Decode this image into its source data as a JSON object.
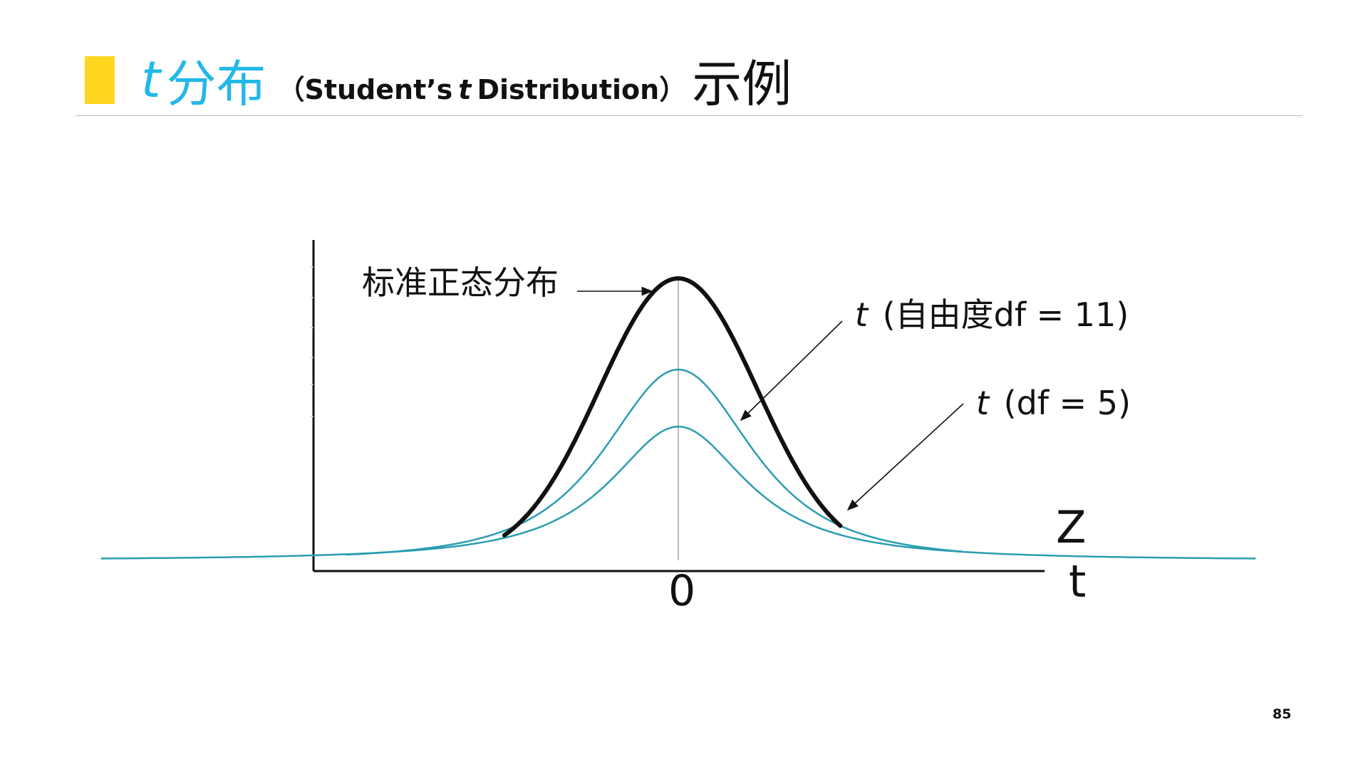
{
  "title": {
    "italic_t": "t",
    "main": "分布",
    "sub_open": "（Student’s",
    "sub_italic": "t",
    "sub_close": "Distribution）",
    "tail": "示例"
  },
  "diagram": {
    "labels": {
      "normal": "标准正态分布",
      "df11_italic": "t",
      "df11_text": "(自由度df = 11)",
      "df5_italic": "t",
      "df5_text": "(df = 5)",
      "z_axis": "Z",
      "t_axis": "t",
      "zero": "0"
    },
    "colors": {
      "normal_curve": "#111111",
      "t_curves": "#2A9DB1",
      "accent": "#FFD61F",
      "title": "#22B8E8"
    }
  },
  "page_number": "85"
}
